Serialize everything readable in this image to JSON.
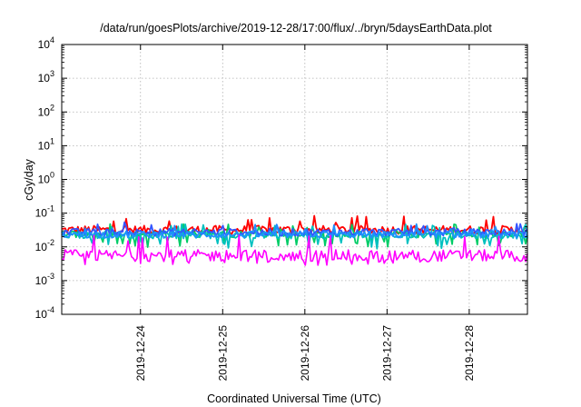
{
  "chart_data": {
    "type": "line",
    "title": "/data/run/goesPlots/archive/2019-12-28/17:00/flux/../bryn/5daysEarthData.plot",
    "xlabel": "Coordinated Universal Time (UTC)",
    "ylabel": "cGy/day",
    "y_scale": "log",
    "ylim": [
      0.0001,
      10000
    ],
    "y_ticks": [
      {
        "base": "10",
        "exp": "-4",
        "value": 0.0001
      },
      {
        "base": "10",
        "exp": "-3",
        "value": 0.001
      },
      {
        "base": "10",
        "exp": "-2",
        "value": 0.01
      },
      {
        "base": "10",
        "exp": "-1",
        "value": 0.1
      },
      {
        "base": "10",
        "exp": "0",
        "value": 1
      },
      {
        "base": "10",
        "exp": "1",
        "value": 10
      },
      {
        "base": "10",
        "exp": "2",
        "value": 100
      },
      {
        "base": "10",
        "exp": "3",
        "value": 1000
      },
      {
        "base": "10",
        "exp": "4",
        "value": 10000
      }
    ],
    "xlim": [
      "2019-12-23T01:00",
      "2019-12-28T17:00"
    ],
    "x_ticks": [
      "2019-12-24",
      "2019-12-25",
      "2019-12-26",
      "2019-12-27",
      "2019-12-28"
    ],
    "grid": true,
    "series": [
      {
        "color": "#ff0000",
        "base": 0.032,
        "spread": 0.25,
        "spikes": 0.07,
        "dips": 0.0
      },
      {
        "color": "#00cc66",
        "base": 0.024,
        "spread": 0.2,
        "spikes": 0.04,
        "dips": 0.012
      },
      {
        "color": "#00c0c0",
        "base": 0.022,
        "spread": 0.2,
        "spikes": 0.04,
        "dips": 0.011
      },
      {
        "color": "#3355ff",
        "base": 0.027,
        "spread": 0.22,
        "spikes": 0.045,
        "dips": 0.0
      },
      {
        "color": "#1e90ff",
        "base": 0.023,
        "spread": 0.2,
        "spikes": 0.04,
        "dips": 0.0
      },
      {
        "color": "#ff00ff",
        "base": 0.0055,
        "spread": 0.35,
        "spikes": 0.02,
        "dips": 0.0035
      }
    ]
  }
}
